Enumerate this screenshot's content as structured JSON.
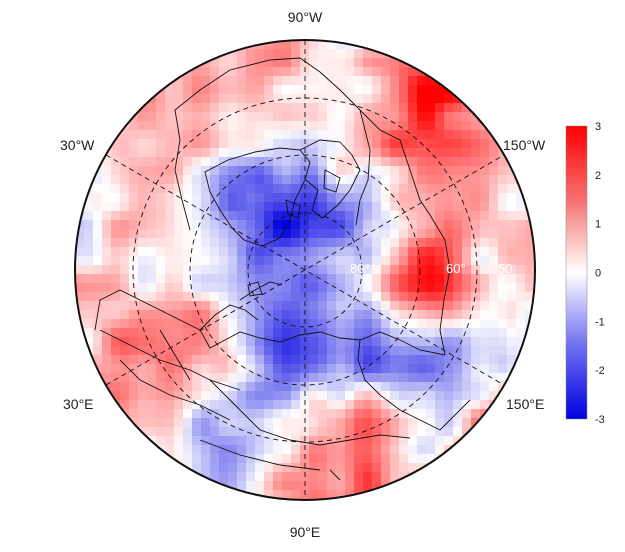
{
  "map": {
    "projection": "north-polar-stereographic",
    "longitude_labels": {
      "top": "90°W",
      "upper_left": "30°W",
      "upper_right": "150°W",
      "lower_left": "30°E",
      "lower_right": "150°E",
      "bottom": "90°E"
    },
    "latitude_labels": [
      "80°",
      "60°",
      "50"
    ],
    "grid": "dashed",
    "coastlines": true
  },
  "colorbar": {
    "ticks": [
      "3",
      "2",
      "1",
      "0",
      "-1",
      "-2",
      "-3"
    ],
    "min": -3,
    "max": 3,
    "colors": {
      "low": "#0000e0",
      "mid": "#ffffff",
      "high": "#ff0000"
    }
  }
}
